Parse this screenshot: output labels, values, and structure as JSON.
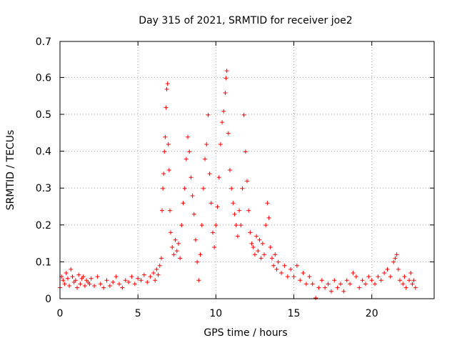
{
  "chart_data": {
    "type": "scatter",
    "title": "Day 315 of 2021, SRMTID for receiver joe2",
    "xlabel": "GPS time / hours",
    "ylabel": "SRMTID / TECUs",
    "xlim": [
      0,
      24
    ],
    "ylim": [
      0,
      0.7
    ],
    "xticks": [
      0,
      5,
      10,
      15,
      20
    ],
    "xtick_labels": [
      "0",
      "5",
      "10",
      "15",
      "20"
    ],
    "yticks": [
      0,
      0.1,
      0.2,
      0.3,
      0.4,
      0.5,
      0.6,
      0.7
    ],
    "ytick_labels": [
      "0",
      "0.1",
      "0.2",
      "0.3",
      "0.4",
      "0.5",
      "0.6",
      "0.7"
    ],
    "grid": true,
    "marker": "plus",
    "series": [
      {
        "name": "SRMTID",
        "color": "#ff0000",
        "points": [
          [
            0.0,
            0.03
          ],
          [
            0.1,
            0.06
          ],
          [
            0.2,
            0.05
          ],
          [
            0.3,
            0.04
          ],
          [
            0.4,
            0.07
          ],
          [
            0.5,
            0.055
          ],
          [
            0.6,
            0.035
          ],
          [
            0.7,
            0.08
          ],
          [
            0.8,
            0.06
          ],
          [
            0.9,
            0.045
          ],
          [
            1.0,
            0.05
          ],
          [
            1.1,
            0.03
          ],
          [
            1.2,
            0.065
          ],
          [
            1.3,
            0.04
          ],
          [
            1.4,
            0.055
          ],
          [
            1.5,
            0.06
          ],
          [
            1.6,
            0.035
          ],
          [
            1.7,
            0.05
          ],
          [
            1.8,
            0.045
          ],
          [
            1.9,
            0.04
          ],
          [
            2.0,
            0.055
          ],
          [
            2.2,
            0.035
          ],
          [
            2.4,
            0.06
          ],
          [
            2.6,
            0.04
          ],
          [
            2.8,
            0.03
          ],
          [
            3.0,
            0.05
          ],
          [
            3.2,
            0.035
          ],
          [
            3.4,
            0.045
          ],
          [
            3.6,
            0.06
          ],
          [
            3.8,
            0.04
          ],
          [
            4.0,
            0.03
          ],
          [
            4.2,
            0.05
          ],
          [
            4.4,
            0.045
          ],
          [
            4.6,
            0.06
          ],
          [
            4.8,
            0.04
          ],
          [
            5.0,
            0.055
          ],
          [
            5.2,
            0.05
          ],
          [
            5.4,
            0.065
          ],
          [
            5.6,
            0.045
          ],
          [
            5.8,
            0.06
          ],
          [
            6.0,
            0.07
          ],
          [
            6.1,
            0.05
          ],
          [
            6.2,
            0.08
          ],
          [
            6.3,
            0.065
          ],
          [
            6.4,
            0.09
          ],
          [
            6.5,
            0.11
          ],
          [
            6.55,
            0.24
          ],
          [
            6.6,
            0.3
          ],
          [
            6.65,
            0.34
          ],
          [
            6.7,
            0.4
          ],
          [
            6.75,
            0.44
          ],
          [
            6.8,
            0.52
          ],
          [
            6.85,
            0.57
          ],
          [
            6.9,
            0.585
          ],
          [
            6.95,
            0.42
          ],
          [
            7.0,
            0.35
          ],
          [
            7.05,
            0.24
          ],
          [
            7.1,
            0.18
          ],
          [
            7.2,
            0.14
          ],
          [
            7.3,
            0.12
          ],
          [
            7.4,
            0.16
          ],
          [
            7.5,
            0.13
          ],
          [
            7.6,
            0.15
          ],
          [
            7.7,
            0.11
          ],
          [
            7.8,
            0.2
          ],
          [
            7.9,
            0.26
          ],
          [
            8.0,
            0.3
          ],
          [
            8.1,
            0.38
          ],
          [
            8.2,
            0.44
          ],
          [
            8.3,
            0.4
          ],
          [
            8.4,
            0.33
          ],
          [
            8.5,
            0.28
          ],
          [
            8.6,
            0.23
          ],
          [
            8.7,
            0.16
          ],
          [
            8.8,
            0.1
          ],
          [
            8.9,
            0.05
          ],
          [
            9.0,
            0.12
          ],
          [
            9.1,
            0.2
          ],
          [
            9.2,
            0.3
          ],
          [
            9.3,
            0.38
          ],
          [
            9.4,
            0.42
          ],
          [
            9.5,
            0.5
          ],
          [
            9.6,
            0.34
          ],
          [
            9.7,
            0.26
          ],
          [
            9.8,
            0.18
          ],
          [
            9.9,
            0.14
          ],
          [
            10.0,
            0.2
          ],
          [
            10.1,
            0.25
          ],
          [
            10.2,
            0.33
          ],
          [
            10.3,
            0.42
          ],
          [
            10.4,
            0.48
          ],
          [
            10.5,
            0.51
          ],
          [
            10.6,
            0.56
          ],
          [
            10.65,
            0.6
          ],
          [
            10.7,
            0.62
          ],
          [
            10.8,
            0.45
          ],
          [
            10.9,
            0.35
          ],
          [
            11.0,
            0.3
          ],
          [
            11.1,
            0.26
          ],
          [
            11.2,
            0.23
          ],
          [
            11.3,
            0.2
          ],
          [
            11.4,
            0.17
          ],
          [
            11.5,
            0.24
          ],
          [
            11.6,
            0.2
          ],
          [
            11.7,
            0.3
          ],
          [
            11.8,
            0.5
          ],
          [
            11.9,
            0.4
          ],
          [
            12.0,
            0.32
          ],
          [
            12.1,
            0.24
          ],
          [
            12.2,
            0.18
          ],
          [
            12.3,
            0.15
          ],
          [
            12.4,
            0.14
          ],
          [
            12.5,
            0.12
          ],
          [
            12.6,
            0.17
          ],
          [
            12.7,
            0.13
          ],
          [
            12.8,
            0.16
          ],
          [
            12.9,
            0.11
          ],
          [
            13.0,
            0.15
          ],
          [
            13.1,
            0.12
          ],
          [
            13.2,
            0.2
          ],
          [
            13.3,
            0.26
          ],
          [
            13.4,
            0.22
          ],
          [
            13.5,
            0.14
          ],
          [
            13.6,
            0.11
          ],
          [
            13.7,
            0.09
          ],
          [
            13.8,
            0.12
          ],
          [
            13.9,
            0.08
          ],
          [
            14.0,
            0.1
          ],
          [
            14.2,
            0.07
          ],
          [
            14.4,
            0.09
          ],
          [
            14.6,
            0.06
          ],
          [
            14.8,
            0.08
          ],
          [
            15.0,
            0.06
          ],
          [
            15.2,
            0.09
          ],
          [
            15.4,
            0.05
          ],
          [
            15.6,
            0.07
          ],
          [
            15.8,
            0.04
          ],
          [
            16.0,
            0.06
          ],
          [
            16.2,
            0.04
          ],
          [
            16.4,
            0.002
          ],
          [
            16.6,
            0.03
          ],
          [
            16.8,
            0.05
          ],
          [
            17.0,
            0.03
          ],
          [
            17.2,
            0.04
          ],
          [
            17.4,
            0.02
          ],
          [
            17.6,
            0.05
          ],
          [
            17.8,
            0.03
          ],
          [
            18.0,
            0.04
          ],
          [
            18.2,
            0.02
          ],
          [
            18.4,
            0.05
          ],
          [
            18.6,
            0.04
          ],
          [
            18.8,
            0.07
          ],
          [
            19.0,
            0.06
          ],
          [
            19.2,
            0.03
          ],
          [
            19.4,
            0.05
          ],
          [
            19.6,
            0.04
          ],
          [
            19.8,
            0.06
          ],
          [
            20.0,
            0.05
          ],
          [
            20.2,
            0.04
          ],
          [
            20.4,
            0.06
          ],
          [
            20.6,
            0.05
          ],
          [
            20.8,
            0.07
          ],
          [
            21.0,
            0.08
          ],
          [
            21.2,
            0.06
          ],
          [
            21.4,
            0.1
          ],
          [
            21.5,
            0.11
          ],
          [
            21.6,
            0.12
          ],
          [
            21.7,
            0.08
          ],
          [
            21.8,
            0.05
          ],
          [
            22.0,
            0.04
          ],
          [
            22.1,
            0.06
          ],
          [
            22.2,
            0.03
          ],
          [
            22.4,
            0.05
          ],
          [
            22.5,
            0.07
          ],
          [
            22.6,
            0.04
          ],
          [
            22.7,
            0.05
          ],
          [
            22.8,
            0.03
          ]
        ]
      }
    ]
  }
}
